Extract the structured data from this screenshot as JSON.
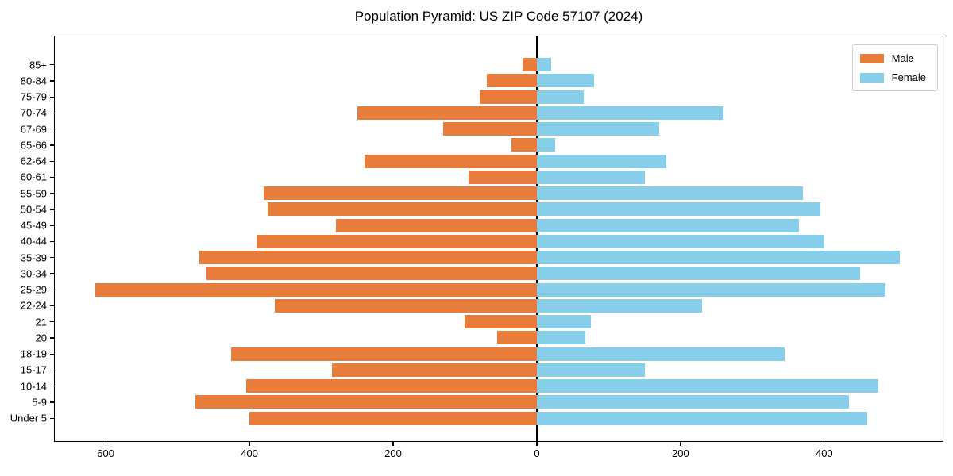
{
  "chart_data": {
    "type": "bar",
    "subtype": "population-pyramid",
    "orientation": "horizontal",
    "title": "Population Pyramid: US ZIP Code 57107 (2024)",
    "categories": [
      "85+",
      "80-84",
      "75-79",
      "70-74",
      "67-69",
      "65-66",
      "62-64",
      "60-61",
      "55-59",
      "50-54",
      "45-49",
      "40-44",
      "35-39",
      "30-34",
      "25-29",
      "22-24",
      "21",
      "20",
      "18-19",
      "15-17",
      "10-14",
      "5-9",
      "Under 5"
    ],
    "series": [
      {
        "name": "Male",
        "color": "#e87d3b",
        "direction": "left",
        "values": [
          20,
          70,
          80,
          250,
          130,
          35,
          240,
          95,
          380,
          375,
          280,
          390,
          470,
          460,
          615,
          365,
          100,
          55,
          425,
          285,
          405,
          475,
          400
        ]
      },
      {
        "name": "Female",
        "color": "#87ceeb",
        "direction": "right",
        "values": [
          20,
          80,
          65,
          260,
          170,
          25,
          180,
          150,
          370,
          395,
          365,
          400,
          505,
          450,
          485,
          230,
          75,
          68,
          345,
          150,
          475,
          435,
          460
        ]
      }
    ],
    "xlim": [
      -672,
      566
    ],
    "x_ticks": [
      {
        "value": -600,
        "label": "600"
      },
      {
        "value": -400,
        "label": "400"
      },
      {
        "value": -200,
        "label": "200"
      },
      {
        "value": 0,
        "label": "0"
      },
      {
        "value": 200,
        "label": "200"
      },
      {
        "value": 400,
        "label": "400"
      }
    ],
    "xlabel": "",
    "ylabel": "",
    "grid": false,
    "zero_axis_line": true,
    "legend": {
      "position": "top-right",
      "entries": [
        "Male",
        "Female"
      ]
    },
    "axis_color": "#000000",
    "background_color": "#ffffff"
  }
}
